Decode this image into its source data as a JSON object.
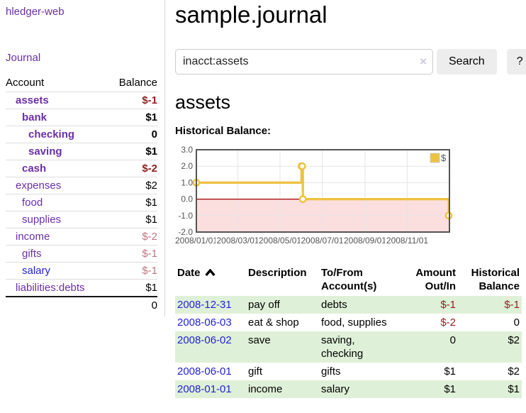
{
  "colors": {
    "link_purple": "#6b2fa5",
    "link_blue": "#2323d2",
    "negative_strong": "#8f1f1f",
    "negative_soft": "#bd7580",
    "row_stripe_green": "#dff0d8",
    "chart_line_gold": "#edc240",
    "chart_negative_fill": "#fbdede",
    "chart_zero_line": "#a40000"
  },
  "sidebar": {
    "brand": "hledger-web",
    "journal_link": "Journal",
    "accounts_table": {
      "headers": [
        "Account",
        "Balance"
      ],
      "rows": [
        {
          "account": "assets",
          "indent": 1,
          "bold": true,
          "link_color": "purple",
          "balance": "$-1",
          "balance_style": "neg-strong"
        },
        {
          "account": "bank",
          "indent": 2,
          "bold": true,
          "link_color": "purple",
          "balance": "$1",
          "balance_style": "pos"
        },
        {
          "account": "checking",
          "indent": 3,
          "bold": true,
          "link_color": "purple",
          "balance": "0",
          "balance_style": "pos"
        },
        {
          "account": "saving",
          "indent": 3,
          "bold": true,
          "link_color": "purple",
          "balance": "$1",
          "balance_style": "pos"
        },
        {
          "account": "cash",
          "indent": 2,
          "bold": true,
          "link_color": "purple",
          "balance": "$-2",
          "balance_style": "neg-strong"
        },
        {
          "account": "expenses",
          "indent": 1,
          "bold": false,
          "link_color": "purple",
          "balance": "$2",
          "balance_style": "pos"
        },
        {
          "account": "food",
          "indent": 2,
          "bold": false,
          "link_color": "purple",
          "balance": "$1",
          "balance_style": "pos"
        },
        {
          "account": "supplies",
          "indent": 2,
          "bold": false,
          "link_color": "purple",
          "balance": "$1",
          "balance_style": "pos"
        },
        {
          "account": "income",
          "indent": 1,
          "bold": false,
          "link_color": "purple",
          "balance": "$-2",
          "balance_style": "neg-soft"
        },
        {
          "account": "gifts",
          "indent": 2,
          "bold": false,
          "link_color": "purple",
          "balance": "$-1",
          "balance_style": "neg-soft"
        },
        {
          "account": "salary",
          "indent": 2,
          "bold": false,
          "link_color": "blue",
          "balance": "$-1",
          "balance_style": "neg-soft"
        },
        {
          "account": "liabilities:debts",
          "indent": 1,
          "bold": false,
          "link_color": "purple",
          "balance": "$1",
          "balance_style": "pos"
        }
      ],
      "total": "0"
    }
  },
  "header": {
    "title": "sample.journal"
  },
  "search": {
    "query": "inacct:assets",
    "clear_icon": "×",
    "button_label": "Search",
    "help_label": "?"
  },
  "account_page": {
    "title": "assets",
    "chart_label": "Historical Balance:"
  },
  "chart_data": {
    "type": "line",
    "style": "steps",
    "title": "Historical Balance:",
    "x_range": [
      "2008-01-01",
      "2009-01-01"
    ],
    "ylim": [
      -2,
      3
    ],
    "y_ticks": [
      "3.0",
      "2.0",
      "1.0",
      "0.0",
      "-1.0",
      "-2.0"
    ],
    "y_tick_values": [
      3,
      2,
      1,
      0,
      -1,
      -2
    ],
    "x_ticks": [
      "2008/01/01",
      "2008/03/01",
      "2008/05/01",
      "2008/07/01",
      "2008/09/01",
      "2008/11/01"
    ],
    "grid": true,
    "legend": {
      "label": "$",
      "position": "top-right"
    },
    "series": [
      {
        "name": "$",
        "color": "#edc240",
        "points": [
          {
            "date": "2008-01-01",
            "value": 1
          },
          {
            "date": "2008-06-01",
            "value": 2
          },
          {
            "date": "2008-06-02",
            "value": 2
          },
          {
            "date": "2008-06-03",
            "value": 0
          },
          {
            "date": "2008-12-31",
            "value": -1
          }
        ]
      }
    ],
    "negative_fill": "#fbdede",
    "zero_line_color": "#a40000",
    "border_color": "#545454",
    "grid_color": "#e5e5e5",
    "tick_text_color": "#545454"
  },
  "transactions": {
    "headers": [
      {
        "line1": "Date",
        "line2": "",
        "sort_icon": "chevron-up"
      },
      {
        "line1": "Description",
        "line2": ""
      },
      {
        "line1": "To/From",
        "line2": "Account(s)"
      },
      {
        "line1": "Amount",
        "line2": "Out/In"
      },
      {
        "line1": "Historical",
        "line2": "Balance"
      }
    ],
    "rows": [
      {
        "date": "2008-12-31",
        "description": "pay off",
        "accounts": "debts",
        "amount": "$-1",
        "amount_negative": true,
        "balance": "$-1",
        "balance_negative": true,
        "stripe": true
      },
      {
        "date": "2008-06-03",
        "description": "eat & shop",
        "accounts": "food, supplies",
        "amount": "$-2",
        "amount_negative": true,
        "balance": "0",
        "balance_negative": false,
        "stripe": false
      },
      {
        "date": "2008-06-02",
        "description": "save",
        "accounts": "saving, checking",
        "amount": "0",
        "amount_negative": false,
        "balance": "$2",
        "balance_negative": false,
        "stripe": true
      },
      {
        "date": "2008-06-01",
        "description": "gift",
        "accounts": "gifts",
        "amount": "$1",
        "amount_negative": false,
        "balance": "$2",
        "balance_negative": false,
        "stripe": false
      },
      {
        "date": "2008-01-01",
        "description": "income",
        "accounts": "salary",
        "amount": "$1",
        "amount_negative": false,
        "balance": "$1",
        "balance_negative": false,
        "stripe": true
      }
    ]
  }
}
